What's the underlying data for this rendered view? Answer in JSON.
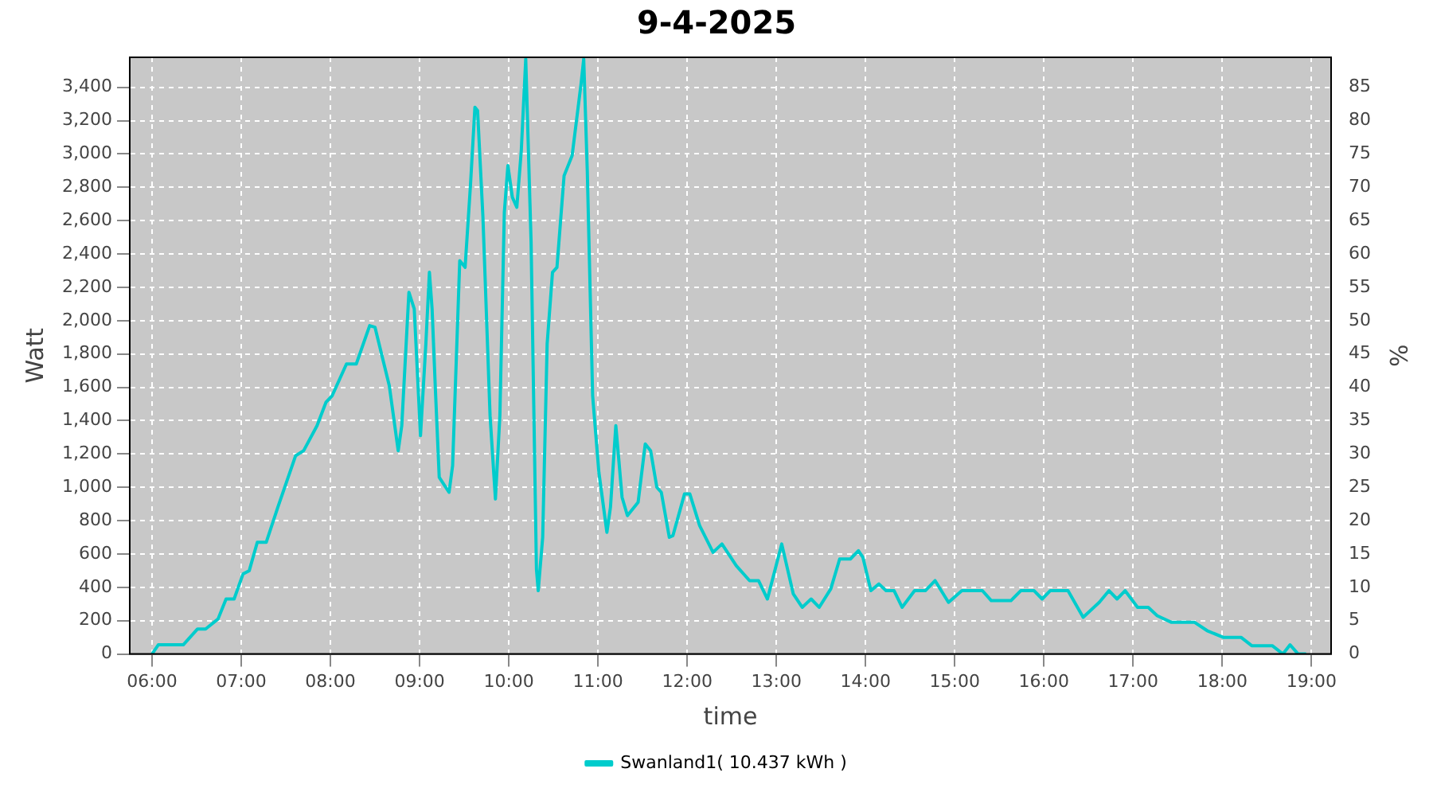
{
  "chart_data": {
    "type": "line",
    "title": "9-4-2025",
    "xlabel": "time",
    "ylabel": "Watt",
    "y2label": "%",
    "x": [
      6.0,
      6.07,
      6.35,
      6.51,
      6.6,
      6.74,
      6.83,
      6.92,
      7.02,
      7.09,
      7.18,
      7.28,
      7.41,
      7.61,
      7.7,
      7.85,
      7.95,
      8.02,
      8.18,
      8.29,
      8.44,
      8.5,
      8.66,
      8.76,
      8.8,
      8.88,
      8.94,
      9.01,
      9.07,
      9.11,
      9.14,
      9.18,
      9.22,
      9.33,
      9.37,
      9.45,
      9.51,
      9.57,
      9.62,
      9.65,
      9.71,
      9.79,
      9.85,
      9.9,
      9.95,
      9.99,
      10.04,
      10.09,
      10.14,
      10.19,
      10.25,
      10.31,
      10.33,
      10.38,
      10.43,
      10.49,
      10.54,
      10.62,
      10.71,
      10.81,
      10.84,
      10.88,
      10.94,
      11.01,
      11.1,
      11.14,
      11.2,
      11.27,
      11.33,
      11.45,
      11.53,
      11.59,
      11.66,
      11.71,
      11.8,
      11.84,
      11.97,
      12.03,
      12.14,
      12.29,
      12.39,
      12.55,
      12.7,
      12.8,
      12.9,
      13.06,
      13.19,
      13.29,
      13.39,
      13.48,
      13.61,
      13.71,
      13.83,
      13.92,
      13.97,
      14.06,
      14.15,
      14.23,
      14.32,
      14.41,
      14.55,
      14.67,
      14.78,
      14.93,
      15.08,
      15.31,
      15.41,
      15.63,
      15.74,
      15.89,
      15.98,
      16.07,
      16.27,
      16.44,
      16.62,
      16.73,
      16.82,
      16.91,
      17.05,
      17.17,
      17.27,
      17.43,
      17.57,
      17.69,
      17.83,
      18.01,
      18.21,
      18.33,
      18.56,
      18.68,
      18.76,
      18.85,
      18.94
    ],
    "series": [
      {
        "name": "Swanland1( 10.437 kWh )",
        "color": "#00cccc",
        "values": [
          0,
          55,
          55,
          150,
          150,
          210,
          330,
          330,
          480,
          500,
          670,
          670,
          880,
          1190,
          1220,
          1370,
          1510,
          1550,
          1740,
          1740,
          1970,
          1960,
          1610,
          1220,
          1370,
          2170,
          2070,
          1310,
          1860,
          2290,
          2070,
          1550,
          1060,
          970,
          1130,
          2360,
          2320,
          2810,
          3280,
          3260,
          2620,
          1430,
          930,
          1430,
          2650,
          2930,
          2740,
          2680,
          3020,
          3570,
          2470,
          510,
          380,
          700,
          1860,
          2290,
          2320,
          2870,
          2990,
          3420,
          3570,
          2900,
          1550,
          1090,
          730,
          880,
          1370,
          940,
          830,
          910,
          1260,
          1220,
          1000,
          970,
          700,
          710,
          960,
          960,
          770,
          610,
          660,
          530,
          440,
          440,
          330,
          660,
          360,
          280,
          330,
          280,
          390,
          570,
          570,
          620,
          580,
          380,
          420,
          380,
          380,
          280,
          380,
          380,
          440,
          310,
          380,
          380,
          320,
          320,
          380,
          380,
          330,
          380,
          380,
          220,
          310,
          380,
          330,
          380,
          280,
          280,
          230,
          190,
          190,
          190,
          140,
          100,
          100,
          50,
          50,
          0,
          55,
          0,
          0
        ]
      }
    ],
    "xlim": [
      5.75,
      19.22
    ],
    "xticks": [
      {
        "value": 6,
        "label": "06:00"
      },
      {
        "value": 7,
        "label": "07:00"
      },
      {
        "value": 8,
        "label": "08:00"
      },
      {
        "value": 9,
        "label": "09:00"
      },
      {
        "value": 10,
        "label": "10:00"
      },
      {
        "value": 11,
        "label": "11:00"
      },
      {
        "value": 12,
        "label": "12:00"
      },
      {
        "value": 13,
        "label": "13:00"
      },
      {
        "value": 14,
        "label": "14:00"
      },
      {
        "value": 15,
        "label": "15:00"
      },
      {
        "value": 16,
        "label": "16:00"
      },
      {
        "value": 17,
        "label": "17:00"
      },
      {
        "value": 18,
        "label": "18:00"
      },
      {
        "value": 19,
        "label": "19:00"
      }
    ],
    "ylim": [
      0,
      3580
    ],
    "yticks": [
      0,
      200,
      400,
      600,
      800,
      {
        "value": 1000,
        "label": "1,000"
      },
      {
        "value": 1200,
        "label": "1,200"
      },
      {
        "value": 1400,
        "label": "1,400"
      },
      {
        "value": 1600,
        "label": "1,600"
      },
      {
        "value": 1800,
        "label": "1,800"
      },
      {
        "value": 2000,
        "label": "2,000"
      },
      {
        "value": 2200,
        "label": "2,200"
      },
      {
        "value": 2400,
        "label": "2,400"
      },
      {
        "value": 2600,
        "label": "2,600"
      },
      {
        "value": 2800,
        "label": "2,800"
      },
      {
        "value": 3000,
        "label": "3,000"
      },
      {
        "value": 3200,
        "label": "3,200"
      },
      {
        "value": 3400,
        "label": "3,400"
      }
    ],
    "y2lim": [
      0,
      89.5
    ],
    "y2ticks": [
      0,
      5,
      10,
      15,
      20,
      25,
      30,
      35,
      40,
      45,
      50,
      55,
      60,
      65,
      70,
      75,
      80,
      85
    ],
    "grid": true,
    "legend": "bottom",
    "marker": "none",
    "line_style": "solid"
  }
}
